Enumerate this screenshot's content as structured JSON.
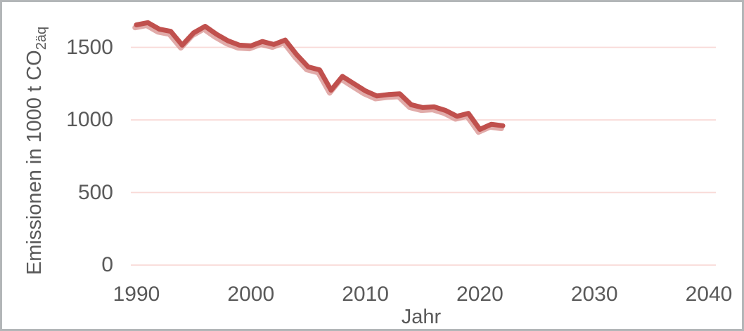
{
  "window": {
    "background": "#ffffff",
    "border_color": "#b3b6b8"
  },
  "chart_data": {
    "type": "line",
    "title": "",
    "xlabel": "Jahr",
    "ylabel": "Emissionen in 1000 t CO2äq",
    "ylabel_main": "Emissionen in 1000 t CO",
    "ylabel_sub": "2äq",
    "x": [
      1990,
      1991,
      1992,
      1993,
      1994,
      1995,
      1996,
      1997,
      1998,
      1999,
      2000,
      2001,
      2002,
      2003,
      2004,
      2005,
      2006,
      2007,
      2008,
      2009,
      2010,
      2011,
      2012,
      2013,
      2014,
      2015,
      2016,
      2017,
      2018,
      2019,
      2020,
      2021,
      2022
    ],
    "series": [
      {
        "name": "Emissionen in 1000 t CO2äq",
        "values": [
          1655,
          1670,
          1625,
          1610,
          1515,
          1600,
          1645,
          1590,
          1545,
          1515,
          1510,
          1540,
          1520,
          1550,
          1450,
          1365,
          1345,
          1205,
          1300,
          1250,
          1200,
          1165,
          1175,
          1180,
          1105,
          1085,
          1090,
          1065,
          1025,
          1045,
          935,
          970,
          960
        ]
      }
    ],
    "xlim": [
      1990,
      2040
    ],
    "ylim": [
      0,
      1700
    ],
    "x_ticks": [
      "1990",
      "2000",
      "2010",
      "2020",
      "2030",
      "2040"
    ],
    "y_ticks": [
      "0",
      "500",
      "1000",
      "1500"
    ],
    "grid": "horizontal-only",
    "legend": "none",
    "colors": {
      "line": "#c0504d",
      "line_shadow": "#d99694",
      "gridline": "#f9dad7",
      "axis_text": "#595959"
    }
  }
}
